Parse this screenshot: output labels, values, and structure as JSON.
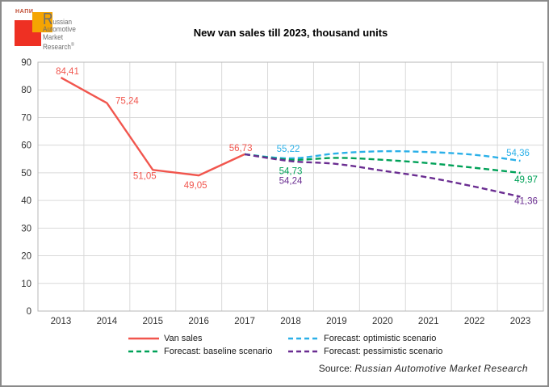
{
  "logo": {
    "napi": "НАПИ",
    "brand_initial": "R",
    "brand_line1_rest": "ussian",
    "brand_line2": "Automotive",
    "brand_line3": "Market",
    "brand_line4": "Research",
    "registered": "®"
  },
  "title": "New van sales till 2023, thousand units",
  "source": {
    "prefix": "Source:",
    "name": "Russian Automotive Market Research"
  },
  "colors": {
    "van_sales": "#f1564e",
    "optimistic": "#2bb0e8",
    "baseline": "#00a158",
    "pessimistic": "#6a2d91",
    "grid": "#d9d9d9",
    "plot_border": "#b7b7b7",
    "axis_text": "#333333",
    "logo_red": "#ee3023",
    "logo_orange": "#f5a402",
    "logo_text": "#6e6e6e"
  },
  "legend": {
    "items": [
      {
        "label": "Van sales",
        "color_key": "van_sales",
        "dashed": false
      },
      {
        "label": "Forecast: optimistic scenario",
        "color_key": "optimistic",
        "dashed": true
      },
      {
        "label": "Forecast: baseline scenario",
        "color_key": "baseline",
        "dashed": true
      },
      {
        "label": "Forecast: pessimistic scenario",
        "color_key": "pessimistic",
        "dashed": true
      }
    ]
  },
  "chart_data": {
    "type": "line",
    "title": "New van sales till 2023, thousand units",
    "xlabel": "",
    "ylabel": "",
    "ylim": [
      0,
      90
    ],
    "ytick_step": 10,
    "grid": true,
    "legend_position": "bottom",
    "decimal_separator": ",",
    "categories": [
      "2013",
      "2014",
      "2015",
      "2016",
      "2017",
      "2018",
      "2019",
      "2020",
      "2021",
      "2022",
      "2023"
    ],
    "series": [
      {
        "name": "Van sales",
        "color_key": "van_sales",
        "style": "solid",
        "smooth": false,
        "values": [
          84.41,
          75.24,
          51.05,
          49.05,
          56.73,
          null,
          null,
          null,
          null,
          null,
          null
        ],
        "point_labels": [
          "84,41",
          "75,24",
          "51,05",
          "49,05",
          "56,73",
          null,
          null,
          null,
          null,
          null,
          null
        ]
      },
      {
        "name": "Forecast: optimistic scenario",
        "color_key": "optimistic",
        "style": "dashed",
        "smooth": true,
        "values": [
          null,
          null,
          null,
          null,
          56.73,
          55.22,
          57.0,
          57.8,
          57.5,
          56.5,
          54.36
        ],
        "point_labels": [
          null,
          null,
          null,
          null,
          null,
          "55,22",
          null,
          null,
          null,
          null,
          "54,36"
        ]
      },
      {
        "name": "Forecast: baseline scenario",
        "color_key": "baseline",
        "style": "dashed",
        "smooth": true,
        "values": [
          null,
          null,
          null,
          null,
          56.73,
          54.73,
          55.4,
          54.7,
          53.5,
          51.8,
          49.97
        ],
        "point_labels": [
          null,
          null,
          null,
          null,
          null,
          "54,73",
          null,
          null,
          null,
          null,
          "49,97"
        ]
      },
      {
        "name": "Forecast: pessimistic scenario",
        "color_key": "pessimistic",
        "style": "dashed",
        "smooth": true,
        "values": [
          null,
          null,
          null,
          null,
          56.73,
          54.24,
          53.2,
          50.8,
          48.3,
          45.0,
          41.36
        ],
        "point_labels": [
          null,
          null,
          null,
          null,
          null,
          "54,24",
          null,
          null,
          null,
          null,
          "41,36"
        ]
      }
    ]
  }
}
